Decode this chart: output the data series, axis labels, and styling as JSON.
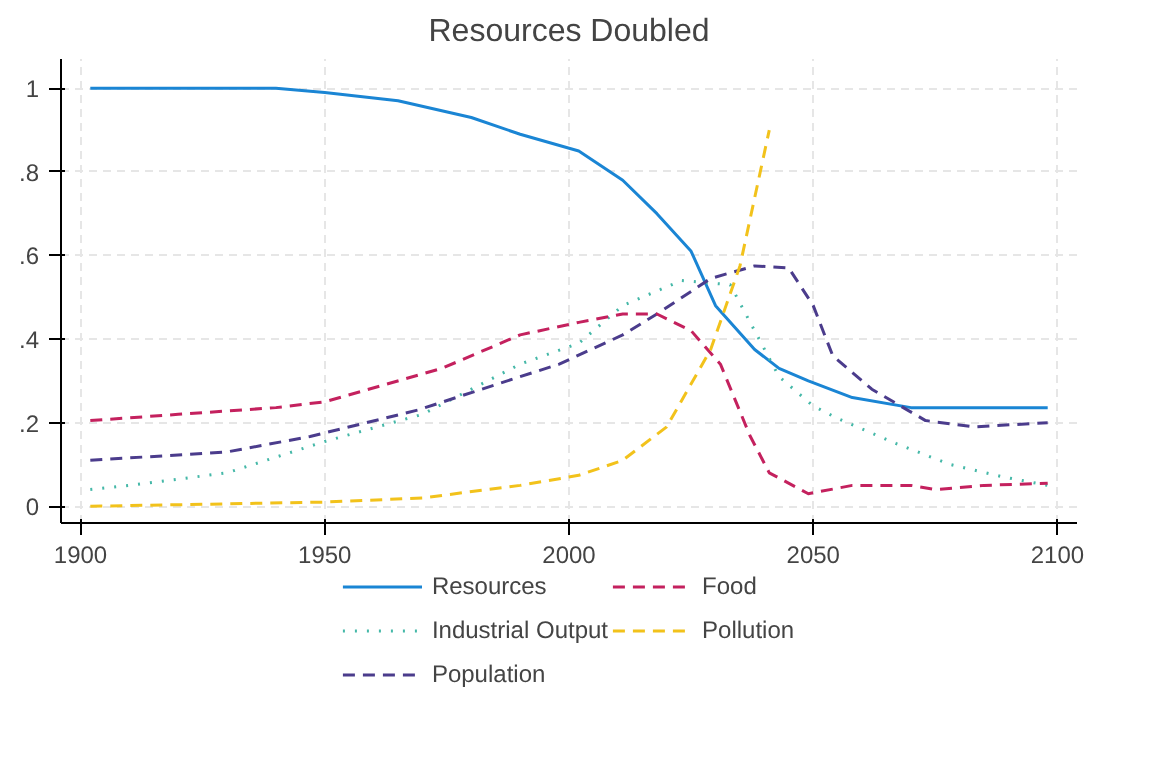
{
  "chart_data": {
    "type": "line",
    "title": "Resources Doubled",
    "xlim": [
      1896,
      2104
    ],
    "ylim": [
      -0.04,
      1.07
    ],
    "xticks": [
      1900,
      1950,
      2000,
      2050,
      2100
    ],
    "yticks": [
      0,
      {
        "value": 0.2,
        "label": ".2"
      },
      {
        "value": 0.4,
        "label": ".4"
      },
      {
        "value": 0.6,
        "label": ".6"
      },
      {
        "value": 0.8,
        "label": ".8"
      },
      1
    ],
    "grid": true,
    "legend": "bottom",
    "marker": "none",
    "series": [
      {
        "name": "Resources",
        "color": "#1a85d4",
        "line_style": "solid",
        "x": [
          1902,
          1940,
          1950,
          1965,
          1980,
          1990,
          2002,
          2011,
          2018,
          2025,
          2030,
          2038,
          2043,
          2049,
          2058,
          2070,
          2098
        ],
        "values": [
          1,
          1,
          0.99,
          0.97,
          0.93,
          0.89,
          0.85,
          0.78,
          0.7,
          0.61,
          0.48,
          0.375,
          0.33,
          0.3,
          0.26,
          0.236,
          0.236
        ]
      },
      {
        "name": "Industrial Output",
        "color": "#45b8a8",
        "line_style": "dotted",
        "x": [
          1902,
          1910,
          1930,
          1950,
          1970,
          1990,
          2002,
          2011,
          2023,
          2033,
          2038,
          2043,
          2050,
          2055,
          2067,
          2078,
          2089,
          2098
        ],
        "values": [
          0.04,
          0.05,
          0.08,
          0.155,
          0.22,
          0.34,
          0.39,
          0.48,
          0.54,
          0.53,
          0.42,
          0.31,
          0.24,
          0.21,
          0.15,
          0.1,
          0.07,
          0.05
        ]
      },
      {
        "name": "Population",
        "color": "#4b3c8c",
        "line_style": "dashed",
        "x": [
          1902,
          1930,
          1947,
          1969,
          1990,
          1998,
          2011,
          2018,
          2029,
          2038,
          2045,
          2050,
          2054,
          2062,
          2073,
          2083,
          2098
        ],
        "values": [
          0.11,
          0.13,
          0.167,
          0.23,
          0.31,
          0.34,
          0.41,
          0.46,
          0.545,
          0.575,
          0.57,
          0.48,
          0.36,
          0.28,
          0.205,
          0.19,
          0.2
        ]
      },
      {
        "name": "Food",
        "color": "#c4215e",
        "line_style": "dashed",
        "x": [
          1902,
          1920,
          1940,
          1950,
          1974,
          1990,
          2002,
          2011,
          2018,
          2025,
          2031,
          2037,
          2041,
          2049,
          2058,
          2070,
          2075,
          2085,
          2098
        ],
        "values": [
          0.205,
          0.22,
          0.236,
          0.25,
          0.33,
          0.41,
          0.44,
          0.46,
          0.46,
          0.42,
          0.34,
          0.17,
          0.08,
          0.03,
          0.05,
          0.05,
          0.04,
          0.05,
          0.055
        ]
      },
      {
        "name": "Pollution",
        "color": "#f2c21b",
        "line_style": "dashed",
        "x": [
          1902,
          1950,
          1970,
          1990,
          2002,
          2011,
          2020,
          2029,
          2035,
          2041
        ],
        "values": [
          0,
          0.01,
          0.02,
          0.05,
          0.074,
          0.11,
          0.19,
          0.375,
          0.575,
          0.9
        ]
      }
    ]
  }
}
